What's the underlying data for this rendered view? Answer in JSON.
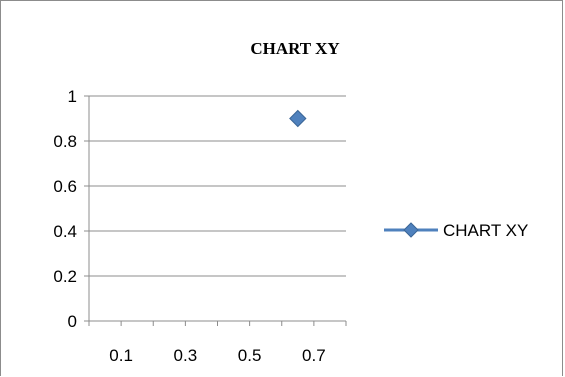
{
  "chart_data": {
    "type": "scatter",
    "title": "CHART XY",
    "xlabel": "",
    "ylabel": "",
    "x_tick_labels": [
      "0.1",
      "0.3",
      "0.5",
      "0.7"
    ],
    "y_tick_labels": [
      "0",
      "0.2",
      "0.4",
      "0.6",
      "0.8",
      "1"
    ],
    "xlim": [
      0,
      0.8
    ],
    "ylim": [
      0,
      1
    ],
    "grid": true,
    "legend_position": "right",
    "series": [
      {
        "name": "CHART XY",
        "color": "#4f81bd",
        "marker": "diamond",
        "points": [
          {
            "x": 0.65,
            "y": 0.9
          }
        ]
      }
    ]
  }
}
